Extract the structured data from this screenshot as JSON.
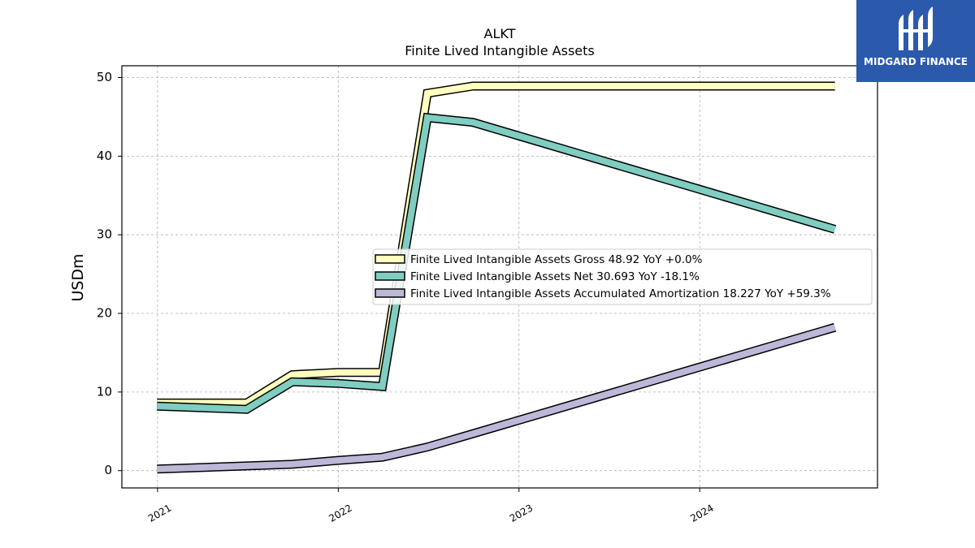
{
  "brand": {
    "name": "MIDGARD FINANCE",
    "color": "#2b5aad"
  },
  "chart_data": {
    "type": "line",
    "title": "ALKT",
    "subtitle": "Finite Lived Intangible Assets",
    "ylabel": "USDm",
    "xlabel": "",
    "ylim": [
      -2.2,
      51.5
    ],
    "xlim": [
      "2020-10-21",
      "2024-12-25"
    ],
    "yticks": [
      0,
      10,
      20,
      30,
      40,
      50
    ],
    "xticks": [
      "2021",
      "2022",
      "2023",
      "2024"
    ],
    "xtick_dates": [
      "2021-01-01",
      "2022-01-01",
      "2023-01-01",
      "2024-01-01"
    ],
    "grid": true,
    "legend_position": "center-right",
    "series": [
      {
        "name": "Finite Lived Intangible Assets Gross",
        "legend": "Finite Lived Intangible Assets Gross  48.92 YoY +0.0%",
        "color": "#ffffbf",
        "x": [
          "2020-12-31",
          "2021-06-30",
          "2021-09-30",
          "2021-12-31",
          "2022-03-31",
          "2022-06-30",
          "2022-09-30",
          "2024-09-30"
        ],
        "y": [
          8.6,
          8.6,
          12.2,
          12.5,
          12.5,
          48.0,
          48.92,
          48.92
        ]
      },
      {
        "name": "Finite Lived Intangible Assets Net",
        "legend": "Finite Lived Intangible Assets Net  30.693 YoY -18.1%",
        "color": "#80cdc1",
        "x": [
          "2020-12-31",
          "2021-06-30",
          "2021-09-30",
          "2021-12-31",
          "2022-03-31",
          "2022-06-30",
          "2022-09-30",
          "2024-09-30"
        ],
        "y": [
          8.2,
          7.8,
          11.3,
          11.1,
          10.7,
          44.9,
          44.3,
          30.693
        ]
      },
      {
        "name": "Finite Lived Intangible Assets Accumulated Amortization",
        "legend": "Finite Lived Intangible Assets Accumulated Amortization  18.227 YoY +59.3%",
        "color": "#bcb8d8",
        "x": [
          "2020-12-31",
          "2021-06-30",
          "2021-09-30",
          "2021-12-31",
          "2022-03-31",
          "2022-06-30",
          "2022-09-30",
          "2024-09-30"
        ],
        "y": [
          0.2,
          0.6,
          0.8,
          1.3,
          1.7,
          3.0,
          4.7,
          18.227
        ]
      }
    ]
  }
}
